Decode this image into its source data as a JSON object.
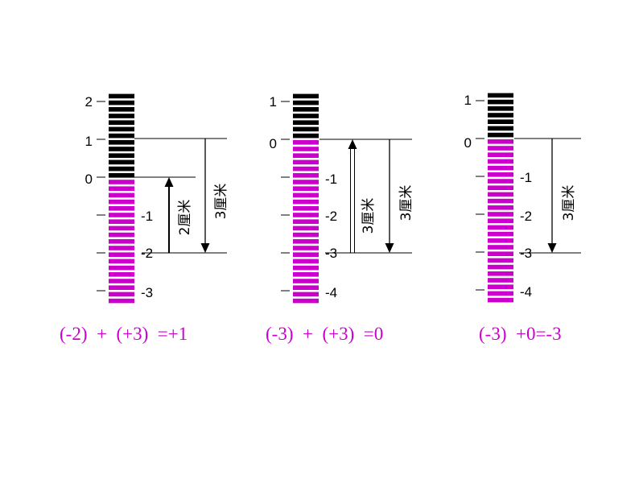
{
  "colors": {
    "positive": "#000000",
    "negative": "#cc00cc",
    "equation": "#cc00cc"
  },
  "panels": [
    {
      "ticks": [
        "2",
        "1",
        "0",
        "-1",
        "-2",
        "-3"
      ],
      "arrows": [
        {
          "label": "2厘米",
          "direction": "up",
          "style": "filled"
        },
        {
          "label": "3厘米",
          "direction": "down",
          "style": "thin"
        }
      ],
      "equation": "(-2)  +  (+3)  =+1"
    },
    {
      "ticks": [
        "1",
        "0",
        "-1",
        "-2",
        "-3",
        "-4"
      ],
      "arrows": [
        {
          "label": "3厘米",
          "direction": "up",
          "style": "double"
        },
        {
          "label": "3厘米",
          "direction": "down",
          "style": "thin"
        }
      ],
      "equation": "(-3)  +  (+3)  =0"
    },
    {
      "ticks": [
        "1",
        "0",
        "-1",
        "-2",
        "-3",
        "-4"
      ],
      "arrows": [
        {
          "label": "3厘米",
          "direction": "down",
          "style": "thin"
        }
      ],
      "equation": "(-3)  +0=-3"
    }
  ]
}
